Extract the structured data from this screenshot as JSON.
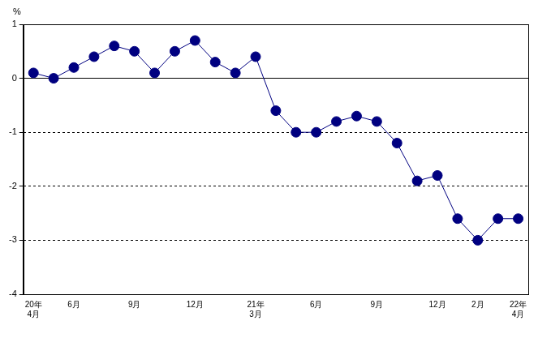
{
  "chart_data": {
    "type": "line",
    "y_label": "%",
    "categories": [
      "20年\n4月",
      null,
      "6月",
      null,
      null,
      "9月",
      null,
      null,
      "12月",
      null,
      null,
      "21年\n3月",
      null,
      null,
      "6月",
      null,
      null,
      "9月",
      null,
      null,
      "12月",
      null,
      "2月",
      null,
      "22年\n4月"
    ],
    "values": [
      0.1,
      0.0,
      0.2,
      0.4,
      0.6,
      0.5,
      0.1,
      0.5,
      0.7,
      0.3,
      0.1,
      0.4,
      -0.6,
      -1.0,
      -1.0,
      -0.8,
      -0.7,
      -0.8,
      -1.2,
      -1.9,
      -1.8,
      -2.6,
      -3.0,
      -2.6,
      -2.6
    ],
    "color": "#000080",
    "marker": "circle",
    "ylim": [
      -4,
      1
    ],
    "yticks": [
      -4,
      -3,
      -2,
      -1,
      0,
      1
    ],
    "grid": true
  }
}
